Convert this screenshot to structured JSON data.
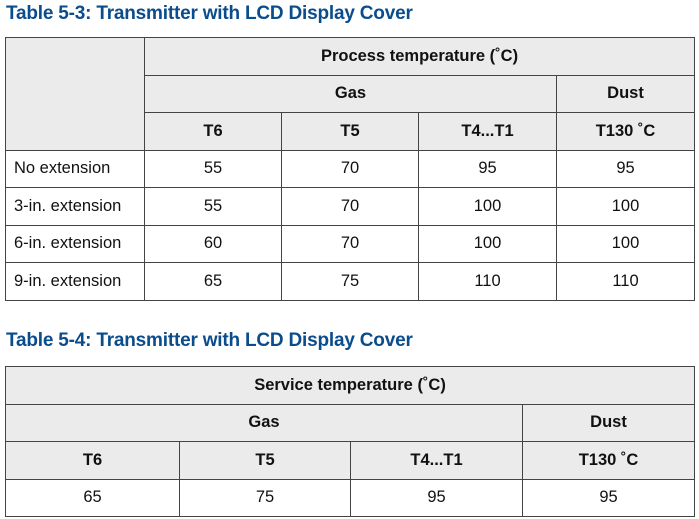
{
  "table1": {
    "title": "Table 5-3: Transmitter with LCD Display Cover",
    "group_header": "Process temperature (˚C)",
    "gas_header": "Gas",
    "dust_header": "Dust",
    "columns": [
      "T6",
      "T5",
      "T4...T1",
      "T130 ˚C"
    ],
    "rows": [
      {
        "label": "No extension",
        "values": [
          "55",
          "70",
          "95",
          "95"
        ]
      },
      {
        "label": "3-in. extension",
        "values": [
          "55",
          "70",
          "100",
          "100"
        ]
      },
      {
        "label": "6-in. extension",
        "values": [
          "60",
          "70",
          "100",
          "100"
        ]
      },
      {
        "label": "9-in. extension",
        "values": [
          "65",
          "75",
          "110",
          "110"
        ]
      }
    ]
  },
  "table2": {
    "title": "Table 5-4: Transmitter with LCD Display Cover",
    "group_header": "Service temperature (˚C)",
    "gas_header": "Gas",
    "dust_header": "Dust",
    "columns": [
      "T6",
      "T5",
      "T4...T1",
      "T130 ˚C"
    ],
    "values": [
      "65",
      "75",
      "95",
      "95"
    ]
  },
  "colors": {
    "title": "#0a4c8c",
    "header_bg": "#ebebeb"
  }
}
